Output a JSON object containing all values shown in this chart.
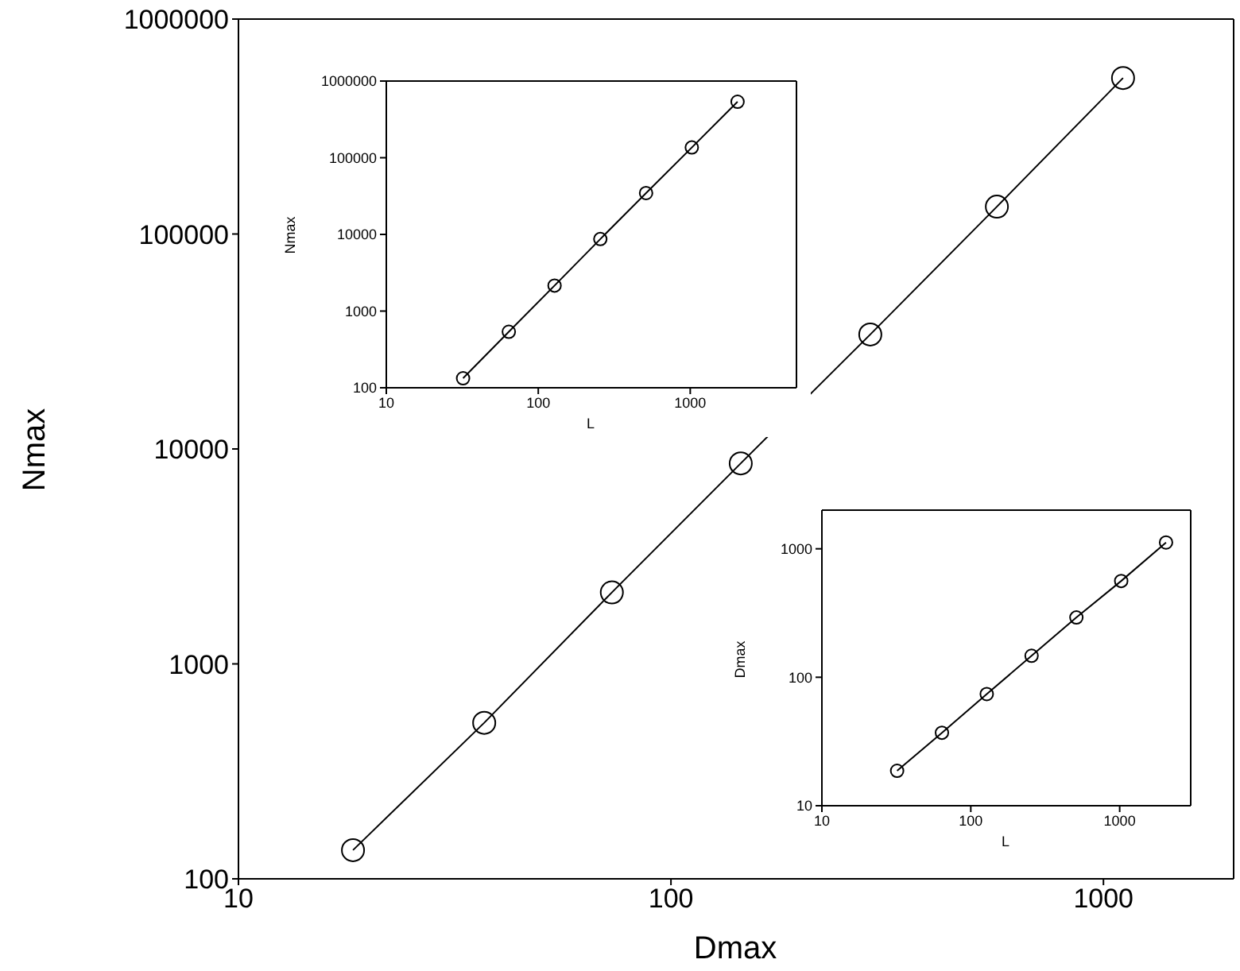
{
  "chart_data": [
    {
      "type": "line",
      "xlabel": "Dmax",
      "ylabel": "Nmax",
      "log": "xy",
      "xlim": [
        10,
        2000
      ],
      "ylim": [
        100,
        1000000
      ],
      "xticks": [
        10,
        100,
        1000
      ],
      "yticks": [
        100,
        1000,
        10000,
        100000,
        1000000
      ],
      "grid": false,
      "legend": false,
      "marker": "circle",
      "line_style": "solid",
      "x": [
        18.4,
        37,
        73,
        145,
        289,
        567,
        1110
      ],
      "series": [
        {
          "color": "#000000",
          "values": [
            136,
            532,
            2150,
            8570,
            34100,
            134000,
            532000
          ]
        }
      ]
    },
    {
      "type": "line",
      "xlabel": "L",
      "ylabel": "Nmax",
      "log": "xy",
      "xlim": [
        10,
        5000
      ],
      "ylim": [
        100,
        1000000
      ],
      "xticks": [
        10,
        100,
        1000
      ],
      "yticks": [
        100,
        1000,
        10000,
        100000,
        1000000
      ],
      "grid": false,
      "legend": false,
      "marker": "circle",
      "line_style": "solid",
      "x": [
        32,
        64,
        128,
        256,
        512,
        1024,
        2048
      ],
      "series": [
        {
          "color": "#000000",
          "values": [
            133,
            537,
            2150,
            8700,
            34600,
            136000,
            537000
          ]
        }
      ]
    },
    {
      "type": "line",
      "xlabel": "L",
      "ylabel": "Dmax",
      "log": "xy",
      "xlim": [
        10,
        3000
      ],
      "ylim": [
        10,
        2000
      ],
      "xticks": [
        10,
        100,
        1000
      ],
      "yticks": [
        10,
        100,
        1000
      ],
      "grid": false,
      "legend": false,
      "marker": "circle",
      "line_style": "solid",
      "x": [
        32,
        64,
        128,
        256,
        512,
        1024,
        2048
      ],
      "series": [
        {
          "color": "#000000",
          "values": [
            18.7,
            37,
            74,
            147,
            292,
            562,
            1120
          ]
        }
      ]
    }
  ]
}
